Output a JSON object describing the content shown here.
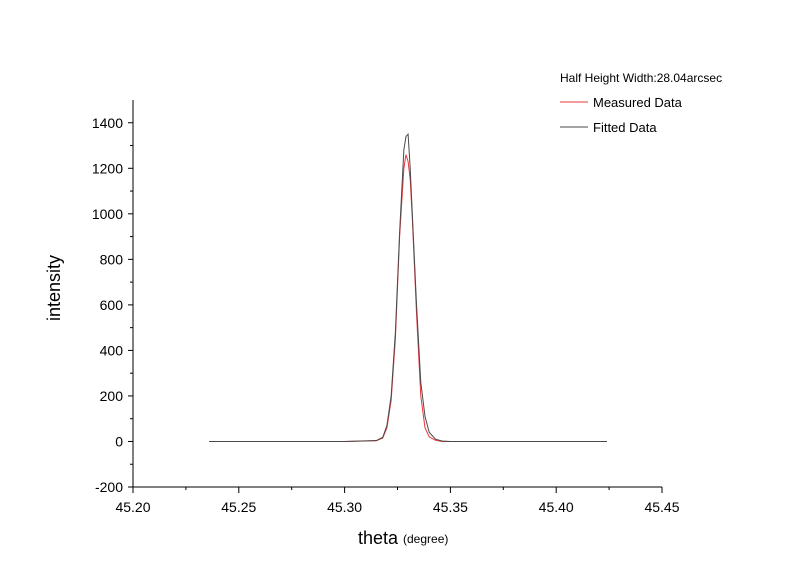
{
  "chart_data": {
    "type": "line",
    "xlabel": "theta",
    "xlabel_unit": "(degree)",
    "ylabel": "intensity",
    "xlim": [
      45.2,
      45.45
    ],
    "ylim": [
      -200,
      1500
    ],
    "x_ticks": [
      45.2,
      45.25,
      45.3,
      45.35,
      45.4,
      45.45
    ],
    "x_tick_labels": [
      "45.20",
      "45.25",
      "45.30",
      "45.35",
      "45.40",
      "45.45"
    ],
    "y_ticks": [
      -200,
      0,
      200,
      400,
      600,
      800,
      1000,
      1200,
      1400
    ],
    "y_tick_labels": [
      "-200",
      "0",
      "200",
      "400",
      "600",
      "800",
      "1000",
      "1200",
      "1400"
    ],
    "grid": false,
    "legend": {
      "placement": "top-right",
      "title": "Half Height Width:28.04arcsec"
    },
    "series": [
      {
        "name": "Measured Data",
        "color": "#e8353b",
        "x": [
          45.236,
          45.3,
          45.315,
          45.318,
          45.32,
          45.322,
          45.324,
          45.326,
          45.328,
          45.329,
          45.33,
          45.331,
          45.332,
          45.334,
          45.336,
          45.338,
          45.34,
          45.343,
          45.346,
          45.35,
          45.424
        ],
        "y": [
          0,
          0,
          3,
          15,
          60,
          180,
          450,
          900,
          1200,
          1260,
          1230,
          1150,
          980,
          560,
          200,
          60,
          20,
          5,
          0,
          0,
          0
        ]
      },
      {
        "name": "Fitted Data",
        "color": "#4a4a4a",
        "x": [
          45.236,
          45.3,
          45.315,
          45.318,
          45.32,
          45.322,
          45.324,
          45.326,
          45.328,
          45.329,
          45.33,
          45.331,
          45.332,
          45.334,
          45.336,
          45.338,
          45.34,
          45.343,
          45.346,
          45.35,
          45.424
        ],
        "y": [
          0,
          0,
          4,
          18,
          70,
          200,
          480,
          920,
          1280,
          1340,
          1350,
          1200,
          1000,
          600,
          260,
          110,
          40,
          10,
          2,
          0,
          0
        ]
      }
    ]
  }
}
